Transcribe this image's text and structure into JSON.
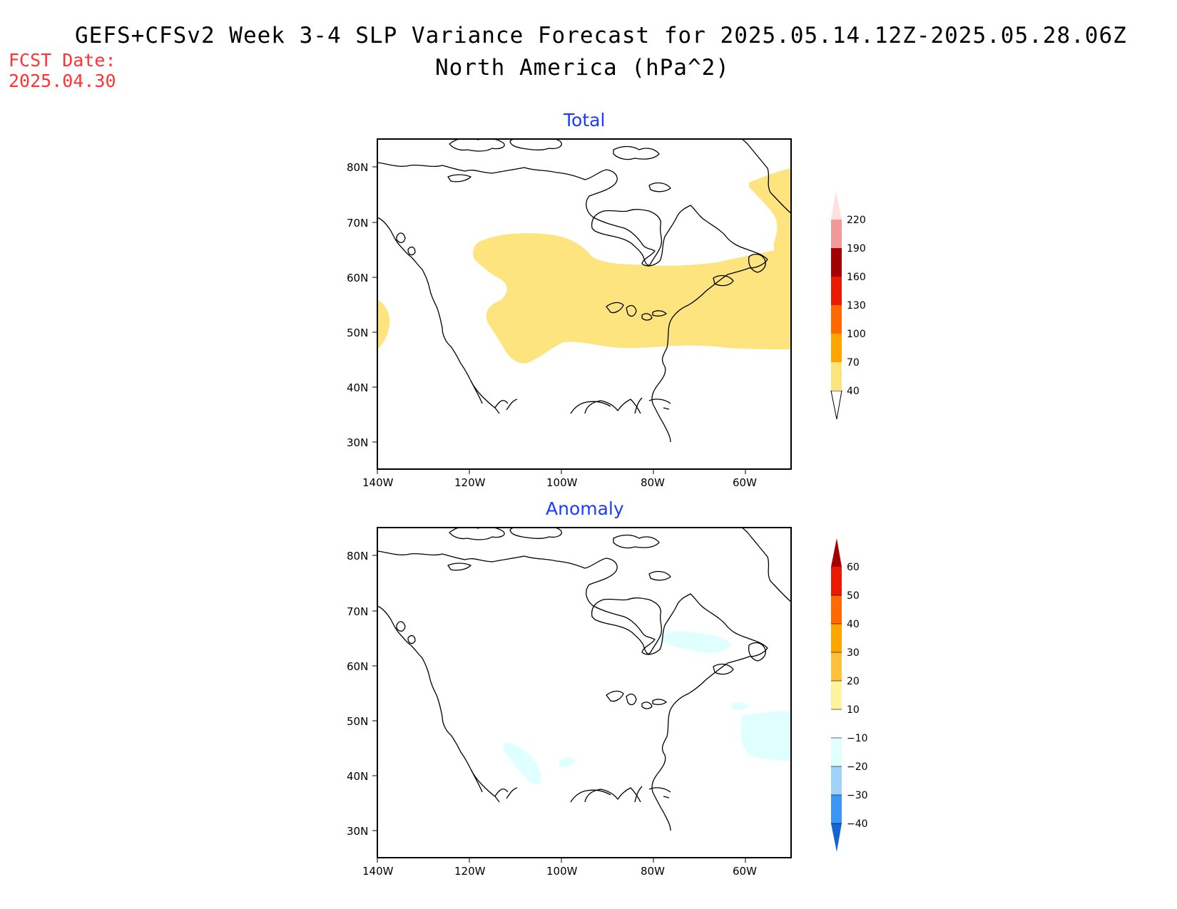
{
  "header": {
    "title_line1": "GEFS+CFSv2 Week 3-4 SLP Variance Forecast for 2025.05.14.12Z-2025.05.28.06Z",
    "title_line2": "North America (hPa^2)",
    "fcst_label": "FCST Date:",
    "fcst_date": "2025.04.30"
  },
  "map_extent": {
    "lon_range": [
      -140,
      -50
    ],
    "lat_range": [
      25,
      85
    ]
  },
  "axes": {
    "lat_ticks": [
      "80N",
      "70N",
      "60N",
      "50N",
      "40N",
      "30N"
    ],
    "lat_values": [
      80,
      70,
      60,
      50,
      40,
      30
    ],
    "lon_ticks": [
      "140W",
      "120W",
      "100W",
      "80W",
      "60W"
    ],
    "lon_values": [
      -140,
      -120,
      -100,
      -80,
      -60
    ]
  },
  "panels": [
    {
      "title": "Total",
      "colorbar": {
        "labels": [
          "40",
          "70",
          "100",
          "130",
          "160",
          "190",
          "220"
        ],
        "colors": [
          "#fde47f",
          "#ffa500",
          "#ff6a00",
          "#e81a00",
          "#a50000",
          "#f09a9a",
          "#fde0e0"
        ],
        "shaded_regions": [
          "northern-canada-band (40-70)",
          "greenland-east (40-70)",
          "pacific-west-edge (40-70)"
        ]
      }
    },
    {
      "title": "Anomaly",
      "colorbar": {
        "labels": [
          "60",
          "50",
          "40",
          "30",
          "20",
          "10",
          "−10",
          "−20",
          "−30",
          "−40"
        ],
        "colors": [
          "#a50000",
          "#e81a00",
          "#ff6a00",
          "#ffa500",
          "#ffc03c",
          "#fff3a0",
          "#ffffff",
          "#e0ffff",
          "#a0d2fa",
          "#3c96f5",
          "#1464d2"
        ],
        "shaded_regions": [
          "hudson-strait (-10 to -20)",
          "newfoundland-atlantic (-10 to -20)",
          "northern-rockies (-10 to -20)"
        ]
      }
    }
  ]
}
